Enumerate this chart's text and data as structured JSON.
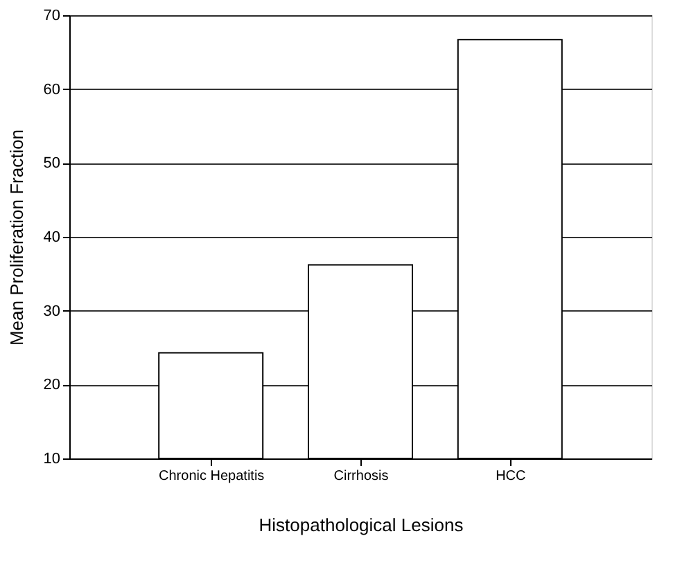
{
  "chart_data": {
    "type": "bar",
    "xlabel": "Histopathological Lesions",
    "ylabel": "Mean Proliferation Fraction",
    "categories": [
      "Chronic Hepatitis",
      "Cirrhosis",
      "HCC"
    ],
    "values": [
      24.3,
      36.2,
      66.7
    ],
    "color": "#ffffff",
    "ylim": [
      10,
      70
    ],
    "yticks": [
      10,
      20,
      30,
      40,
      50,
      60,
      70
    ],
    "grid": "y"
  }
}
